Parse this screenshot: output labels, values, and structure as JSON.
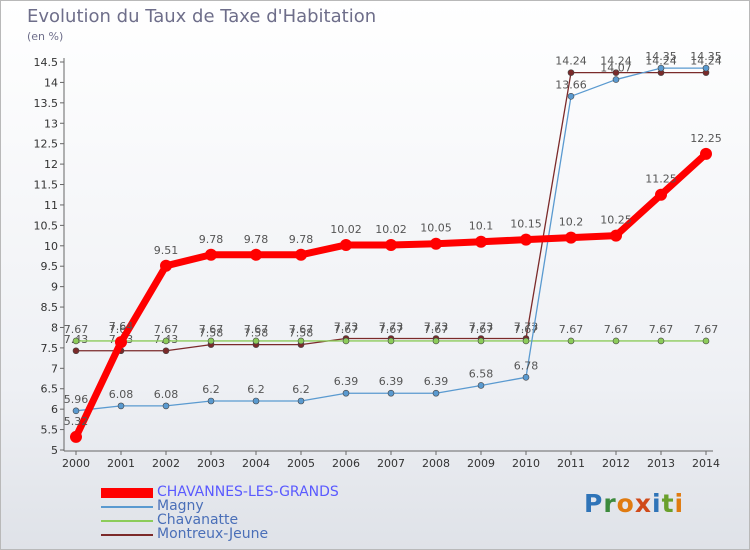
{
  "header": {
    "title": "Evolution du Taux de Taxe d'Habitation",
    "unit": "(en %)"
  },
  "logo": {
    "text": "Proxiti",
    "letters": [
      "P",
      "r",
      "o",
      "x",
      "i",
      "t",
      "i"
    ],
    "letter_colors": [
      "#2f74b8",
      "#3c8a3c",
      "#e07b10",
      "#d04a1a",
      "#2f74b8",
      "#6aa02c",
      "#e07b10"
    ]
  },
  "chart_data": {
    "type": "line",
    "title": "Evolution du Taux de Taxe d'Habitation",
    "ylabel": "(en %)",
    "xlabel": "",
    "x": [
      2000,
      2001,
      2002,
      2003,
      2004,
      2005,
      2006,
      2007,
      2008,
      2009,
      2010,
      2011,
      2012,
      2013,
      2014
    ],
    "x_tick_labels": [
      "2000",
      "2001",
      "2002",
      "2003",
      "2004",
      "2005",
      "2006",
      "2007",
      "2008",
      "2009",
      "2010",
      "2011",
      "2012",
      "2013",
      "2014"
    ],
    "ylim": [
      5,
      14.5
    ],
    "y_ticks": [
      5,
      5.5,
      6,
      6.5,
      7,
      7.5,
      8,
      8.5,
      9,
      9.5,
      10,
      10.5,
      11,
      11.5,
      12,
      12.5,
      13,
      13.5,
      14,
      14.5
    ],
    "y_tick_labels": [
      "5",
      "5.5",
      "6",
      "6.5",
      "7",
      "7.5",
      "8",
      "8.5",
      "9",
      "9.5",
      "10",
      "10.5",
      "11",
      "11.5",
      "12",
      "12.5",
      "13",
      "13.5",
      "14",
      "14.5"
    ],
    "grid": false,
    "legend_position": "bottom-left",
    "series": [
      {
        "name": "Montreux-Jeune",
        "color": "#7b2a2a",
        "values": [
          7.43,
          7.43,
          7.43,
          7.58,
          7.58,
          7.58,
          7.73,
          7.73,
          7.73,
          7.73,
          7.73,
          14.24,
          14.24,
          14.24,
          14.24
        ],
        "labels": [
          "7.43",
          "7.43",
          "7.43",
          "7.58",
          "7.58",
          "7.58",
          "7.73",
          "7.73",
          "7.73",
          "7.73",
          "7.73",
          "14.24",
          "14.24",
          "14.24",
          "14.24"
        ]
      },
      {
        "name": "Chavanatte",
        "color": "#8ccc5a",
        "values": [
          7.67,
          7.67,
          7.67,
          7.67,
          7.67,
          7.67,
          7.67,
          7.67,
          7.67,
          7.67,
          7.67,
          7.67,
          7.67,
          7.67,
          7.67
        ],
        "labels": [
          "7.67",
          "7.67",
          "7.67",
          "7.67",
          "7.67",
          "7.67",
          "7.67",
          "7.67",
          "7.67",
          "7.67",
          "7.67",
          "7.67",
          "7.67",
          "7.67",
          "7.67"
        ]
      },
      {
        "name": "Magny",
        "color": "#5a9ad0",
        "values": [
          5.96,
          6.08,
          6.08,
          6.2,
          6.2,
          6.2,
          6.39,
          6.39,
          6.39,
          6.58,
          6.78,
          13.66,
          14.07,
          14.35,
          14.35
        ],
        "labels": [
          "5.96",
          "6.08",
          "6.08",
          "6.2",
          "6.2",
          "6.2",
          "6.39",
          "6.39",
          "6.39",
          "6.58",
          "6.78",
          "13.66",
          "14.07",
          "14.35",
          "14.35"
        ]
      },
      {
        "name": "CHAVANNES-LES-GRANDS",
        "color": "#ff0000",
        "values": [
          5.32,
          7.64,
          9.51,
          9.78,
          9.78,
          9.78,
          10.02,
          10.02,
          10.05,
          10.1,
          10.15,
          10.2,
          10.25,
          11.25,
          12.25
        ],
        "labels": [
          "5.32",
          "7.64",
          "9.51",
          "9.78",
          "9.78",
          "9.78",
          "10.02",
          "10.02",
          "10.05",
          "10.1",
          "10.15",
          "10.2",
          "10.25",
          "11.25",
          "12.25"
        ]
      }
    ],
    "legend_order": [
      "CHAVANNES-LES-GRANDS",
      "Magny",
      "Chavanatte",
      "Montreux-Jeune"
    ]
  }
}
